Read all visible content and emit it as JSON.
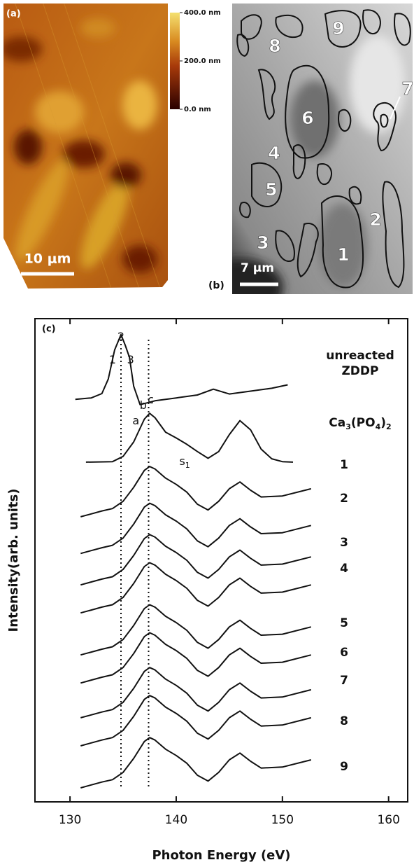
{
  "panel_a": {
    "label": "(a)",
    "colorbar": {
      "lim": [
        0,
        400
      ],
      "ticks": [
        {
          "value": 400,
          "label": "400.0 nm"
        },
        {
          "value": 200,
          "label": "200.0 nm"
        },
        {
          "value": 0,
          "label": "0.0 nm"
        }
      ]
    },
    "scale_bar": "10 μm"
  },
  "panel_b": {
    "label": "(b)",
    "scale_bar": "7 μm",
    "regions": [
      "1",
      "2",
      "3",
      "4",
      "5",
      "6",
      "7",
      "8",
      "9"
    ]
  },
  "chart_data": {
    "type": "line",
    "label": "(c)",
    "xlabel": "Photon Energy (eV)",
    "ylabel": "Intensity(arb. units)",
    "xlim": [
      126.7,
      161.8
    ],
    "xticks": [
      130,
      140,
      150,
      160
    ],
    "ylim": [
      0,
      100
    ],
    "color": "#111111",
    "vlines": [
      134.8,
      137.4
    ],
    "annotations": [
      "1",
      "2",
      "3",
      "a",
      "b",
      "c",
      "s1"
    ],
    "x": [
      131,
      132,
      133,
      134,
      135,
      136,
      137,
      137.5,
      138,
      139,
      140,
      141,
      142,
      143,
      144,
      145,
      146,
      147,
      148,
      150,
      152.7
    ],
    "series": [
      {
        "name": "unreacted ZDDP",
        "x": [
          130.5,
          132,
          133,
          133.6,
          134.2,
          134.8,
          135.2,
          135.6,
          136.0,
          136.6,
          138,
          140,
          142,
          143.5,
          145,
          147,
          149,
          150.5
        ],
        "values": [
          83.3,
          83.6,
          84.5,
          87.5,
          93.5,
          96.7,
          94.5,
          92.0,
          86.0,
          82.2,
          83.0,
          83.6,
          84.2,
          85.4,
          84.4,
          85.0,
          85.6,
          86.3
        ]
      },
      {
        "name": "Ca3(PO4)2",
        "x": [
          131.5,
          134,
          135,
          136,
          137,
          137.5,
          138,
          139,
          140,
          141,
          142,
          143,
          144,
          145,
          146,
          147,
          148,
          149,
          150,
          151
        ],
        "values": [
          70.3,
          70.4,
          71.5,
          74.5,
          79.2,
          80.4,
          79.5,
          76.5,
          75.3,
          74.0,
          72.5,
          71.1,
          72.5,
          76.0,
          78.9,
          77.0,
          73.0,
          71.0,
          70.4,
          70.3
        ]
      },
      {
        "name": "1",
        "values": [
          59.0,
          59.6,
          60.2,
          60.7,
          62.2,
          65.1,
          68.6,
          69.4,
          68.9,
          67.0,
          65.7,
          64.1,
          61.6,
          60.4,
          62.2,
          64.8,
          66.2,
          64.5,
          63.1,
          63.3,
          64.8
        ]
      },
      {
        "name": "2",
        "values": [
          51.4,
          52.0,
          52.6,
          53.1,
          54.6,
          57.5,
          61.0,
          61.8,
          61.3,
          59.4,
          58.1,
          56.5,
          54.0,
          52.8,
          54.6,
          57.2,
          58.6,
          56.9,
          55.5,
          55.7,
          57.2
        ]
      },
      {
        "name": "3",
        "values": [
          44.9,
          45.5,
          46.1,
          46.6,
          48.1,
          51.0,
          54.5,
          55.3,
          54.8,
          52.9,
          51.6,
          50.0,
          47.5,
          46.3,
          48.1,
          50.7,
          52.1,
          50.4,
          49.0,
          49.2,
          50.7
        ]
      },
      {
        "name": "4",
        "values": [
          39.1,
          39.7,
          40.3,
          40.8,
          42.3,
          45.2,
          48.7,
          49.5,
          49.0,
          47.1,
          45.8,
          44.2,
          41.7,
          40.5,
          42.3,
          44.9,
          46.3,
          44.6,
          43.2,
          43.4,
          44.9
        ]
      },
      {
        "name": "5",
        "values": [
          30.4,
          31.0,
          31.6,
          32.1,
          33.6,
          36.5,
          40.0,
          40.8,
          40.3,
          38.4,
          37.1,
          35.5,
          33.0,
          31.8,
          33.6,
          36.2,
          37.6,
          35.9,
          34.5,
          34.7,
          36.2
        ]
      },
      {
        "name": "6",
        "values": [
          24.6,
          25.2,
          25.8,
          26.3,
          27.8,
          30.7,
          34.2,
          35.0,
          34.5,
          32.6,
          31.3,
          29.7,
          27.2,
          26.0,
          27.8,
          30.4,
          31.8,
          30.1,
          28.7,
          28.9,
          30.4
        ]
      },
      {
        "name": "7",
        "values": [
          17.4,
          18.0,
          18.6,
          19.1,
          20.6,
          23.5,
          27.0,
          27.8,
          27.3,
          25.4,
          24.1,
          22.5,
          20.0,
          18.8,
          20.6,
          23.2,
          24.6,
          22.9,
          21.5,
          21.7,
          23.2
        ]
      },
      {
        "name": "8",
        "values": [
          11.6,
          12.2,
          12.8,
          13.3,
          14.8,
          17.7,
          21.2,
          22.0,
          21.5,
          19.6,
          18.3,
          16.7,
          14.2,
          13.0,
          14.8,
          17.4,
          18.8,
          17.1,
          15.7,
          15.9,
          17.4
        ]
      },
      {
        "name": "9",
        "values": [
          2.9,
          3.5,
          4.1,
          4.6,
          6.1,
          9.0,
          12.5,
          13.3,
          12.8,
          10.9,
          9.6,
          8.0,
          5.5,
          4.3,
          6.1,
          8.7,
          10.1,
          8.4,
          7.0,
          7.2,
          8.7
        ]
      }
    ]
  }
}
